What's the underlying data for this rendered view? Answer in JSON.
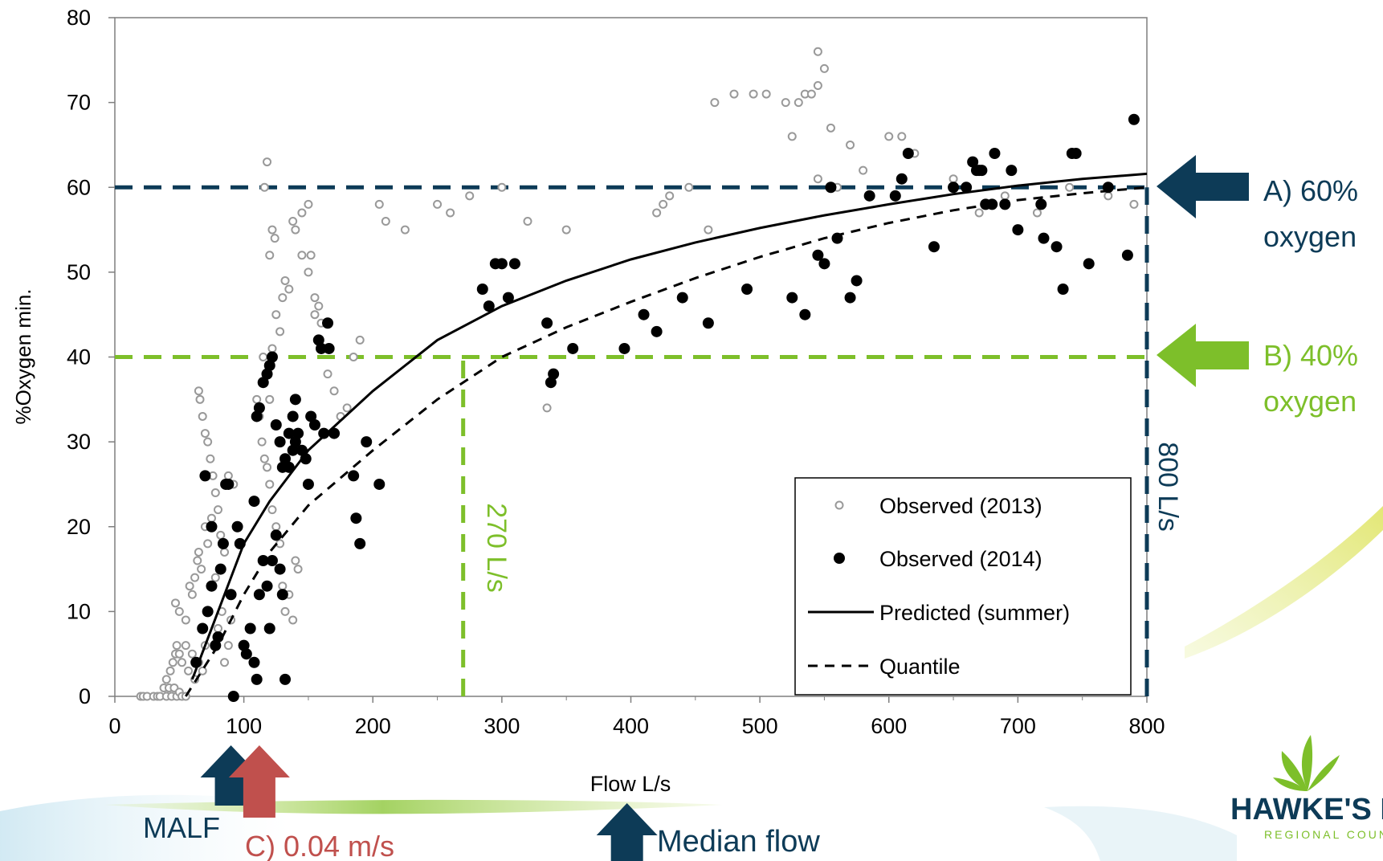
{
  "chart_data": {
    "type": "scatter",
    "xlabel": "Flow L/s",
    "ylabel": "%Oxygen min.",
    "xlim": [
      0,
      800
    ],
    "ylim": [
      0,
      80
    ],
    "x_ticks": [
      0,
      100,
      200,
      300,
      400,
      500,
      600,
      700,
      800
    ],
    "y_ticks": [
      0,
      10,
      20,
      30,
      40,
      50,
      60,
      70,
      80
    ],
    "grid": false,
    "legend_position": "bottom-right",
    "legend": [
      "Observed (2013)",
      "Observed (2014)",
      "Predicted (summer)",
      "Quantile"
    ],
    "series": [
      {
        "name": "Observed (2013)",
        "marker": "open-circle",
        "color": "#999999",
        "points": [
          [
            20,
            0
          ],
          [
            22,
            0
          ],
          [
            25,
            0
          ],
          [
            30,
            0
          ],
          [
            33,
            0
          ],
          [
            35,
            0
          ],
          [
            38,
            1
          ],
          [
            40,
            0
          ],
          [
            42,
            1
          ],
          [
            44,
            0
          ],
          [
            46,
            1
          ],
          [
            48,
            0
          ],
          [
            50,
            0.5
          ],
          [
            52,
            0
          ],
          [
            55,
            0
          ],
          [
            40,
            2
          ],
          [
            43,
            3
          ],
          [
            45,
            4
          ],
          [
            47,
            5
          ],
          [
            48,
            6
          ],
          [
            50,
            5
          ],
          [
            52,
            4
          ],
          [
            55,
            6
          ],
          [
            57,
            3
          ],
          [
            60,
            5
          ],
          [
            62,
            2
          ],
          [
            65,
            4
          ],
          [
            68,
            3
          ],
          [
            70,
            6
          ],
          [
            47,
            11
          ],
          [
            50,
            10
          ],
          [
            55,
            9
          ],
          [
            58,
            13
          ],
          [
            60,
            12
          ],
          [
            62,
            14
          ],
          [
            64,
            16
          ],
          [
            65,
            17
          ],
          [
            67,
            15
          ],
          [
            70,
            20
          ],
          [
            72,
            18
          ],
          [
            75,
            21
          ],
          [
            78,
            14
          ],
          [
            80,
            8
          ],
          [
            83,
            10
          ],
          [
            85,
            4
          ],
          [
            88,
            6
          ],
          [
            90,
            9
          ],
          [
            65,
            36
          ],
          [
            66,
            35
          ],
          [
            68,
            33
          ],
          [
            70,
            31
          ],
          [
            72,
            30
          ],
          [
            74,
            28
          ],
          [
            76,
            26
          ],
          [
            78,
            24
          ],
          [
            80,
            22
          ],
          [
            82,
            19
          ],
          [
            85,
            17
          ],
          [
            88,
            26
          ],
          [
            92,
            25
          ],
          [
            110,
            35
          ],
          [
            112,
            33
          ],
          [
            114,
            30
          ],
          [
            116,
            28
          ],
          [
            118,
            27
          ],
          [
            120,
            25
          ],
          [
            122,
            22
          ],
          [
            125,
            20
          ],
          [
            128,
            18
          ],
          [
            130,
            13
          ],
          [
            132,
            10
          ],
          [
            135,
            12
          ],
          [
            138,
            9
          ],
          [
            140,
            16
          ],
          [
            142,
            15
          ],
          [
            115,
            40
          ],
          [
            117,
            38
          ],
          [
            120,
            35
          ],
          [
            122,
            41
          ],
          [
            125,
            45
          ],
          [
            128,
            43
          ],
          [
            130,
            47
          ],
          [
            132,
            49
          ],
          [
            135,
            48
          ],
          [
            138,
            56
          ],
          [
            140,
            55
          ],
          [
            145,
            57
          ],
          [
            150,
            58
          ],
          [
            152,
            52
          ],
          [
            155,
            45
          ],
          [
            116,
            60
          ],
          [
            118,
            63
          ],
          [
            120,
            52
          ],
          [
            122,
            55
          ],
          [
            124,
            54
          ],
          [
            145,
            52
          ],
          [
            150,
            50
          ],
          [
            155,
            47
          ],
          [
            158,
            46
          ],
          [
            160,
            44
          ],
          [
            165,
            38
          ],
          [
            170,
            36
          ],
          [
            175,
            33
          ],
          [
            180,
            34
          ],
          [
            185,
            40
          ],
          [
            190,
            42
          ],
          [
            205,
            58
          ],
          [
            210,
            56
          ],
          [
            225,
            55
          ],
          [
            250,
            58
          ],
          [
            260,
            57
          ],
          [
            275,
            59
          ],
          [
            300,
            60
          ],
          [
            320,
            56
          ],
          [
            335,
            34
          ],
          [
            350,
            55
          ],
          [
            420,
            57
          ],
          [
            425,
            58
          ],
          [
            430,
            59
          ],
          [
            445,
            60
          ],
          [
            460,
            55
          ],
          [
            465,
            70
          ],
          [
            480,
            71
          ],
          [
            495,
            71
          ],
          [
            505,
            71
          ],
          [
            520,
            70
          ],
          [
            525,
            66
          ],
          [
            530,
            70
          ],
          [
            535,
            71
          ],
          [
            540,
            71
          ],
          [
            545,
            72
          ],
          [
            550,
            74
          ],
          [
            555,
            67
          ],
          [
            545,
            76
          ],
          [
            545,
            61
          ],
          [
            560,
            60
          ],
          [
            570,
            65
          ],
          [
            580,
            62
          ],
          [
            600,
            66
          ],
          [
            610,
            66
          ],
          [
            620,
            64
          ],
          [
            650,
            61
          ],
          [
            670,
            57
          ],
          [
            690,
            59
          ],
          [
            715,
            57
          ],
          [
            740,
            60
          ],
          [
            770,
            59
          ],
          [
            790,
            58
          ]
        ]
      },
      {
        "name": "Observed (2014)",
        "marker": "filled-circle",
        "color": "#000000",
        "points": [
          [
            63,
            4
          ],
          [
            68,
            8
          ],
          [
            72,
            10
          ],
          [
            75,
            13
          ],
          [
            78,
            6
          ],
          [
            80,
            7
          ],
          [
            82,
            15
          ],
          [
            84,
            18
          ],
          [
            86,
            25
          ],
          [
            90,
            12
          ],
          [
            92,
            0
          ],
          [
            95,
            20
          ],
          [
            97,
            18
          ],
          [
            100,
            6
          ],
          [
            102,
            5
          ],
          [
            105,
            8
          ],
          [
            108,
            4
          ],
          [
            110,
            2
          ],
          [
            112,
            12
          ],
          [
            115,
            16
          ],
          [
            118,
            13
          ],
          [
            120,
            8
          ],
          [
            122,
            16
          ],
          [
            125,
            19
          ],
          [
            128,
            15
          ],
          [
            130,
            12
          ],
          [
            132,
            2
          ],
          [
            135,
            27
          ],
          [
            138,
            29
          ],
          [
            140,
            30
          ],
          [
            70,
            26
          ],
          [
            75,
            20
          ],
          [
            88,
            25
          ],
          [
            108,
            23
          ],
          [
            110,
            33
          ],
          [
            112,
            34
          ],
          [
            115,
            37
          ],
          [
            118,
            38
          ],
          [
            120,
            39
          ],
          [
            122,
            40
          ],
          [
            125,
            32
          ],
          [
            128,
            30
          ],
          [
            130,
            27
          ],
          [
            132,
            28
          ],
          [
            135,
            31
          ],
          [
            138,
            33
          ],
          [
            140,
            35
          ],
          [
            142,
            31
          ],
          [
            145,
            29
          ],
          [
            148,
            28
          ],
          [
            150,
            25
          ],
          [
            152,
            33
          ],
          [
            155,
            32
          ],
          [
            158,
            42
          ],
          [
            160,
            41
          ],
          [
            162,
            31
          ],
          [
            165,
            44
          ],
          [
            166,
            41
          ],
          [
            170,
            31
          ],
          [
            185,
            26
          ],
          [
            187,
            21
          ],
          [
            190,
            18
          ],
          [
            195,
            30
          ],
          [
            205,
            25
          ],
          [
            285,
            48
          ],
          [
            290,
            46
          ],
          [
            295,
            51
          ],
          [
            300,
            51
          ],
          [
            305,
            47
          ],
          [
            310,
            51
          ],
          [
            335,
            44
          ],
          [
            338,
            37
          ],
          [
            340,
            38
          ],
          [
            355,
            41
          ],
          [
            395,
            41
          ],
          [
            410,
            45
          ],
          [
            420,
            43
          ],
          [
            440,
            47
          ],
          [
            460,
            44
          ],
          [
            490,
            48
          ],
          [
            525,
            47
          ],
          [
            535,
            45
          ],
          [
            545,
            52
          ],
          [
            550,
            51
          ],
          [
            555,
            60
          ],
          [
            560,
            54
          ],
          [
            570,
            47
          ],
          [
            575,
            49
          ],
          [
            585,
            59
          ],
          [
            605,
            59
          ],
          [
            610,
            61
          ],
          [
            615,
            64
          ],
          [
            635,
            53
          ],
          [
            650,
            60
          ],
          [
            660,
            60
          ],
          [
            665,
            63
          ],
          [
            668,
            62
          ],
          [
            670,
            62
          ],
          [
            672,
            62
          ],
          [
            675,
            58
          ],
          [
            680,
            58
          ],
          [
            682,
            64
          ],
          [
            690,
            58
          ],
          [
            695,
            62
          ],
          [
            700,
            55
          ],
          [
            718,
            58
          ],
          [
            720,
            54
          ],
          [
            730,
            53
          ],
          [
            735,
            48
          ],
          [
            742,
            64
          ],
          [
            745,
            64
          ],
          [
            755,
            51
          ],
          [
            770,
            60
          ],
          [
            785,
            52
          ],
          [
            790,
            68
          ]
        ]
      },
      {
        "name": "Predicted (summer)",
        "line_style": "solid",
        "color": "#000000",
        "x": [
          60,
          80,
          100,
          120,
          150,
          200,
          250,
          300,
          350,
          400,
          450,
          500,
          550,
          600,
          650,
          700,
          750,
          800
        ],
        "y": [
          2,
          10,
          18,
          23,
          29,
          36,
          42,
          46,
          49,
          51.5,
          53.5,
          55.2,
          56.7,
          58,
          59.2,
          60.2,
          61,
          61.6
        ]
      },
      {
        "name": "Quantile",
        "line_style": "dashed",
        "color": "#000000",
        "x": [
          55,
          80,
          100,
          120,
          150,
          200,
          250,
          300,
          350,
          400,
          450,
          500,
          550,
          600,
          650,
          700,
          750,
          800
        ],
        "y": [
          0,
          6,
          12,
          17,
          22.5,
          29,
          35,
          40,
          43.5,
          46.5,
          49.3,
          51.8,
          54,
          55.8,
          57.3,
          58.5,
          59.3,
          60
        ]
      }
    ],
    "reference_lines": [
      {
        "orientation": "horizontal",
        "y": 60,
        "x_end": 800,
        "color": "#0d3b57"
      },
      {
        "orientation": "horizontal",
        "y": 40,
        "x_end": 800,
        "color": "#7dbf2a"
      },
      {
        "orientation": "vertical",
        "x": 270,
        "y_end": 40,
        "color": "#7dbf2a"
      },
      {
        "orientation": "vertical",
        "x": 800,
        "y_end": 60,
        "color": "#0d3b57"
      }
    ],
    "annotations": {
      "a_line1": "A) 60%",
      "a_line2": "oxygen",
      "b_line1": "B) 40%",
      "b_line2": "oxygen",
      "v270": "270 L/s",
      "v800": "800 L/s",
      "malf": "MALF",
      "c_label": "C) 0.04 m/s",
      "median": "Median flow"
    },
    "arrow_positions": {
      "malf": 90,
      "c_velocity": 112,
      "median": 397
    }
  },
  "logo": {
    "name": "HAWKE'S BAY",
    "subtitle": "REGIONAL COUNCIL"
  },
  "colors": {
    "navy": "#0d3b57",
    "green": "#7dbf2a",
    "red": "#c0504d",
    "gray_marker": "#999999"
  }
}
